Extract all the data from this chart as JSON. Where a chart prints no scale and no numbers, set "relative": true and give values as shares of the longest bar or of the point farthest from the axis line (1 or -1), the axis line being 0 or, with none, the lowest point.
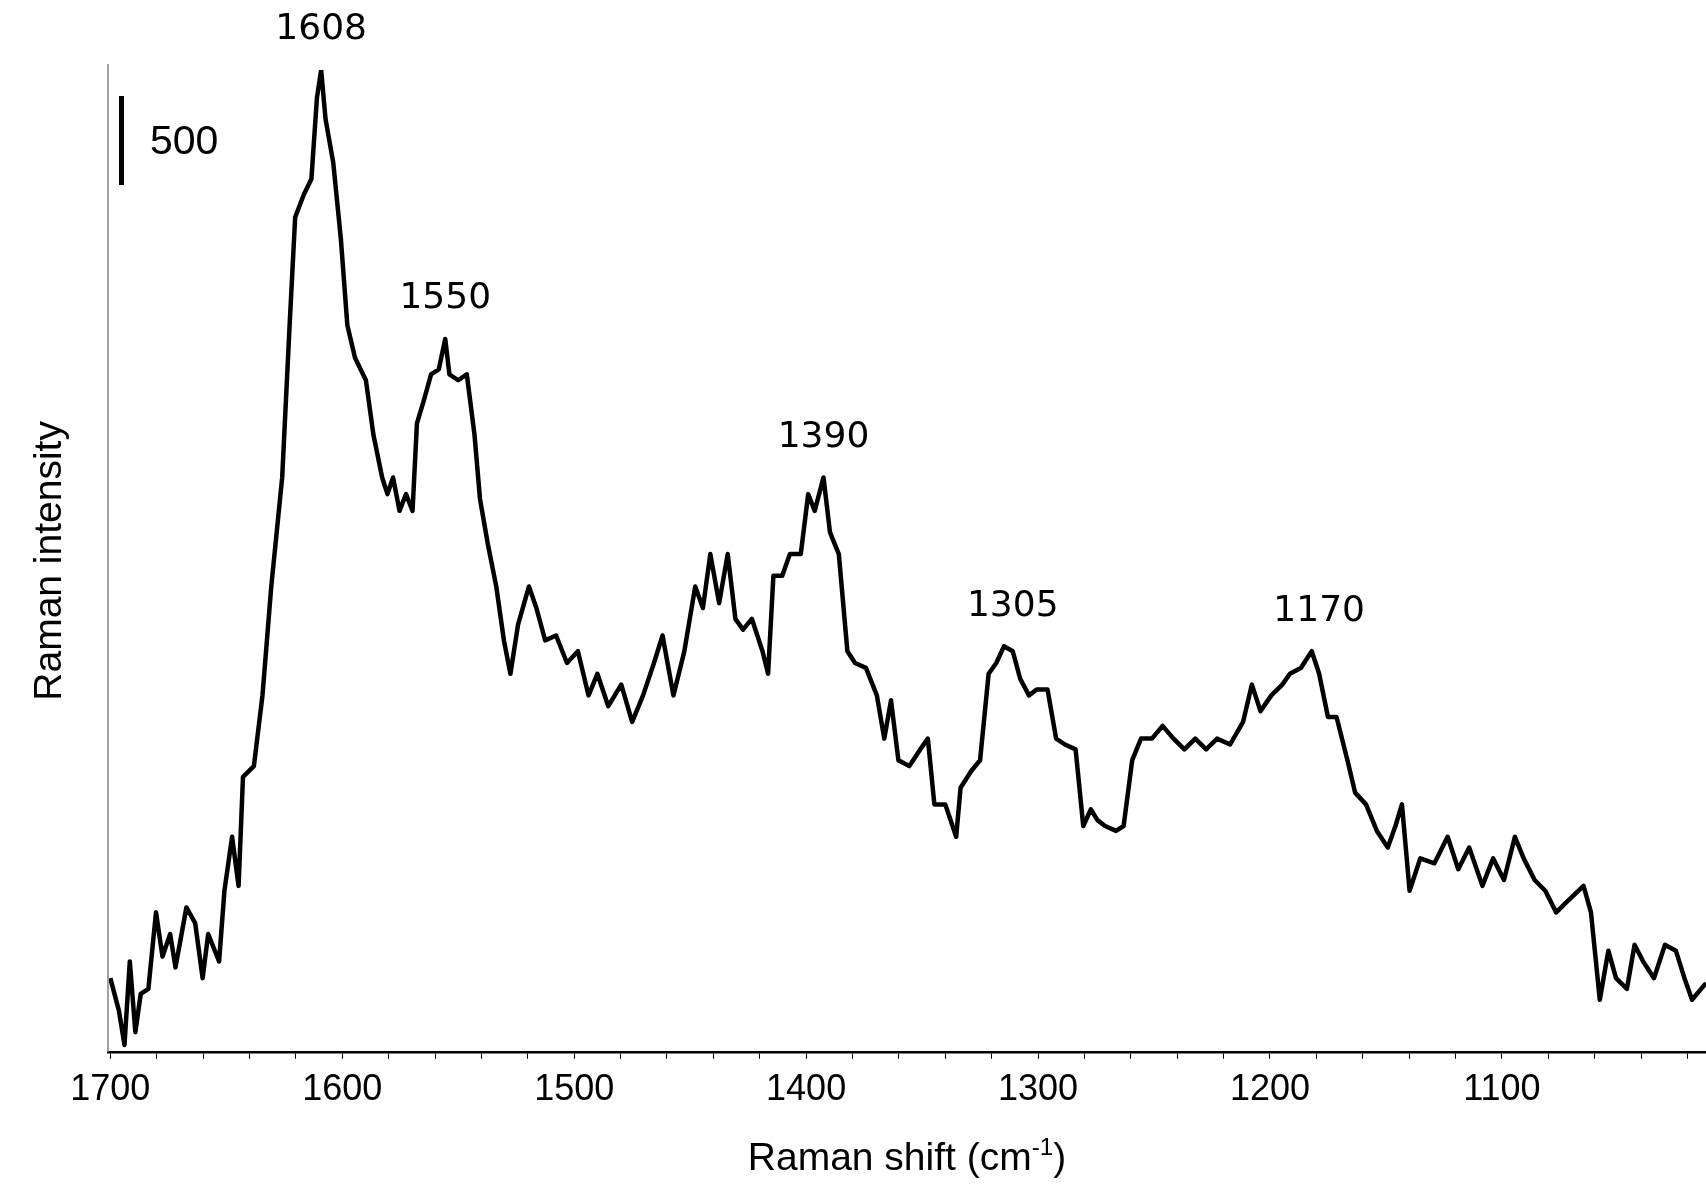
{
  "chart_data": {
    "type": "line",
    "relative": true,
    "xlabel": "Raman shift (cm$^{-1}$)",
    "ylabel": "Raman intensity",
    "xlim": [
      1701,
      1012
    ],
    "xticks": [
      1700,
      {
        "value": 1680,
        "label": null
      },
      {
        "value": 1660,
        "label": null
      },
      {
        "value": 1640,
        "label": null
      },
      {
        "value": 1620,
        "label": null
      },
      1600,
      {
        "value": 1580,
        "label": null
      },
      {
        "value": 1560,
        "label": null
      },
      {
        "value": 1540,
        "label": null
      },
      {
        "value": 1520,
        "label": null
      },
      1500,
      {
        "value": 1480,
        "label": null
      },
      {
        "value": 1460,
        "label": null
      },
      {
        "value": 1440,
        "label": null
      },
      {
        "value": 1420,
        "label": null
      },
      1400,
      {
        "value": 1380,
        "label": null
      },
      {
        "value": 1360,
        "label": null
      },
      {
        "value": 1340,
        "label": null
      },
      {
        "value": 1320,
        "label": null
      },
      1300,
      {
        "value": 1280,
        "label": null
      },
      {
        "value": 1260,
        "label": null
      },
      {
        "value": 1240,
        "label": null
      },
      {
        "value": 1220,
        "label": null
      },
      1200,
      {
        "value": 1180,
        "label": null
      },
      {
        "value": 1160,
        "label": null
      },
      {
        "value": 1140,
        "label": null
      },
      {
        "value": 1120,
        "label": null
      },
      1100,
      {
        "value": 1080,
        "label": null
      },
      {
        "value": 1060,
        "label": null
      },
      {
        "value": 1040,
        "label": null
      },
      {
        "value": 1020,
        "label": null
      }
    ],
    "annotations": [
      "500",
      {
        "text": "1608",
        "x": 1609.1,
        "y": 1
      },
      {
        "text": "1550",
        "x": 1555.6,
        "y": 0.726
      },
      {
        "text": "1390",
        "x": 1392.5,
        "y": 0.585
      },
      {
        "text": "1305",
        "x": 1310.9,
        "y": 0.413
      },
      {
        "text": "1170",
        "x": 1178.8,
        "y": 0.408
      }
    ],
    "series": [
      {
        "color": "#000000",
        "x": [
          1700,
          1696.3,
          1693.9,
          1691.6,
          1689.2,
          1686.9,
          1683.6,
          1680.3,
          1677.5,
          1674.2,
          1671.9,
          1667.2,
          1663.4,
          1660.2,
          1657.8,
          1653.1,
          1650.8,
          1647.5,
          1644.7,
          1642.8,
          1638.1,
          1634.4,
          1630.6,
          1625.9,
          1622.7,
          1620.3,
          1616.6,
          1613.3,
          1610.9,
          1609.1,
          1607.2,
          1603.9,
          1600.6,
          1597.8,
          1594.5,
          1589.8,
          1586.6,
          1582.8,
          1580.5,
          1578.1,
          1575.3,
          1572.5,
          1569.7,
          1567.8,
          1565,
          1561.7,
          1558.4,
          1555.6,
          1553.8,
          1550,
          1546.3,
          1543,
          1540.6,
          1537.3,
          1533.6,
          1530.3,
          1527.5,
          1524.2,
          1519.5,
          1516.3,
          1512.5,
          1507.8,
          1503.1,
          1498.4,
          1493.8,
          1490,
          1485.3,
          1479.7,
          1475,
          1470.3,
          1465.6,
          1461.9,
          1457.2,
          1452.5,
          1447.8,
          1444.5,
          1441.3,
          1437.5,
          1433.8,
          1430.5,
          1427.2,
          1423.4,
          1418.8,
          1416.4,
          1414.1,
          1410.3,
          1407,
          1402.3,
          1399.1,
          1396.3,
          1392.5,
          1389.7,
          1385.9,
          1382.2,
          1378.9,
          1374.2,
          1369.5,
          1366.3,
          1363.4,
          1360.2,
          1355.5,
          1350.8,
          1347.5,
          1344.7,
          1340,
          1335.3,
          1333.4,
          1328.8,
          1325,
          1321.3,
          1318,
          1314.7,
          1310.9,
          1307.7,
          1303.9,
          1300.6,
          1295.9,
          1292.2,
          1288.4,
          1283.8,
          1280.5,
          1277.2,
          1274.4,
          1271.1,
          1266.4,
          1263.1,
          1259.4,
          1255.6,
          1250.9,
          1246.3,
          1241.6,
          1236.9,
          1232.2,
          1227.5,
          1222.8,
          1217.2,
          1211.6,
          1207.8,
          1204.1,
          1199.4,
          1194.7,
          1191.4,
          1186.7,
          1182,
          1178.8,
          1175,
          1171.3,
          1166.6,
          1163.3,
          1158.6,
          1153.9,
          1149.2,
          1145.9,
          1143.1,
          1139.8,
          1135.2,
          1129.1,
          1123.4,
          1118.8,
          1114.1,
          1108.4,
          1103.8,
          1099.1,
          1094.4,
          1090.6,
          1085.9,
          1081.3,
          1076.6,
          1071.9,
          1064.8,
          1061.6,
          1057.8,
          1054.1,
          1050.8,
          1046.1,
          1042.8,
          1039.1,
          1034.4,
          1029.7,
          1025,
          1021.3,
          1018,
          1012
        ],
        "values": [
          0.075,
          0.042,
          0.007,
          0.092,
          0.02,
          0.059,
          0.064,
          0.142,
          0.097,
          0.12,
          0.086,
          0.147,
          0.131,
          0.075,
          0.12,
          0.092,
          0.164,
          0.219,
          0.169,
          0.28,
          0.291,
          0.363,
          0.474,
          0.585,
          0.74,
          0.85,
          0.873,
          0.889,
          0.972,
          1,
          0.95,
          0.906,
          0.828,
          0.74,
          0.707,
          0.684,
          0.629,
          0.585,
          0.568,
          0.585,
          0.551,
          0.568,
          0.551,
          0.64,
          0.662,
          0.69,
          0.695,
          0.726,
          0.69,
          0.684,
          0.69,
          0.629,
          0.563,
          0.518,
          0.474,
          0.419,
          0.385,
          0.435,
          0.474,
          0.452,
          0.419,
          0.424,
          0.396,
          0.408,
          0.363,
          0.385,
          0.352,
          0.374,
          0.336,
          0.363,
          0.396,
          0.424,
          0.363,
          0.408,
          0.474,
          0.452,
          0.507,
          0.457,
          0.507,
          0.441,
          0.43,
          0.441,
          0.408,
          0.385,
          0.485,
          0.485,
          0.507,
          0.507,
          0.568,
          0.551,
          0.585,
          0.529,
          0.507,
          0.408,
          0.396,
          0.391,
          0.363,
          0.319,
          0.358,
          0.297,
          0.291,
          0.308,
          0.319,
          0.252,
          0.252,
          0.219,
          0.269,
          0.286,
          0.297,
          0.385,
          0.396,
          0.413,
          0.408,
          0.38,
          0.363,
          0.369,
          0.369,
          0.319,
          0.313,
          0.308,
          0.23,
          0.247,
          0.236,
          0.23,
          0.225,
          0.23,
          0.297,
          0.319,
          0.319,
          0.332,
          0.319,
          0.308,
          0.319,
          0.308,
          0.319,
          0.313,
          0.336,
          0.374,
          0.347,
          0.363,
          0.374,
          0.385,
          0.391,
          0.408,
          0.385,
          0.341,
          0.341,
          0.297,
          0.264,
          0.252,
          0.225,
          0.208,
          0.23,
          0.252,
          0.164,
          0.197,
          0.192,
          0.219,
          0.186,
          0.208,
          0.169,
          0.197,
          0.175,
          0.219,
          0.197,
          0.175,
          0.164,
          0.142,
          0.153,
          0.169,
          0.142,
          0.053,
          0.103,
          0.075,
          0.064,
          0.109,
          0.092,
          0.075,
          0.109,
          0.103,
          0.075,
          0.053,
          0.07
        ]
      }
    ]
  }
}
